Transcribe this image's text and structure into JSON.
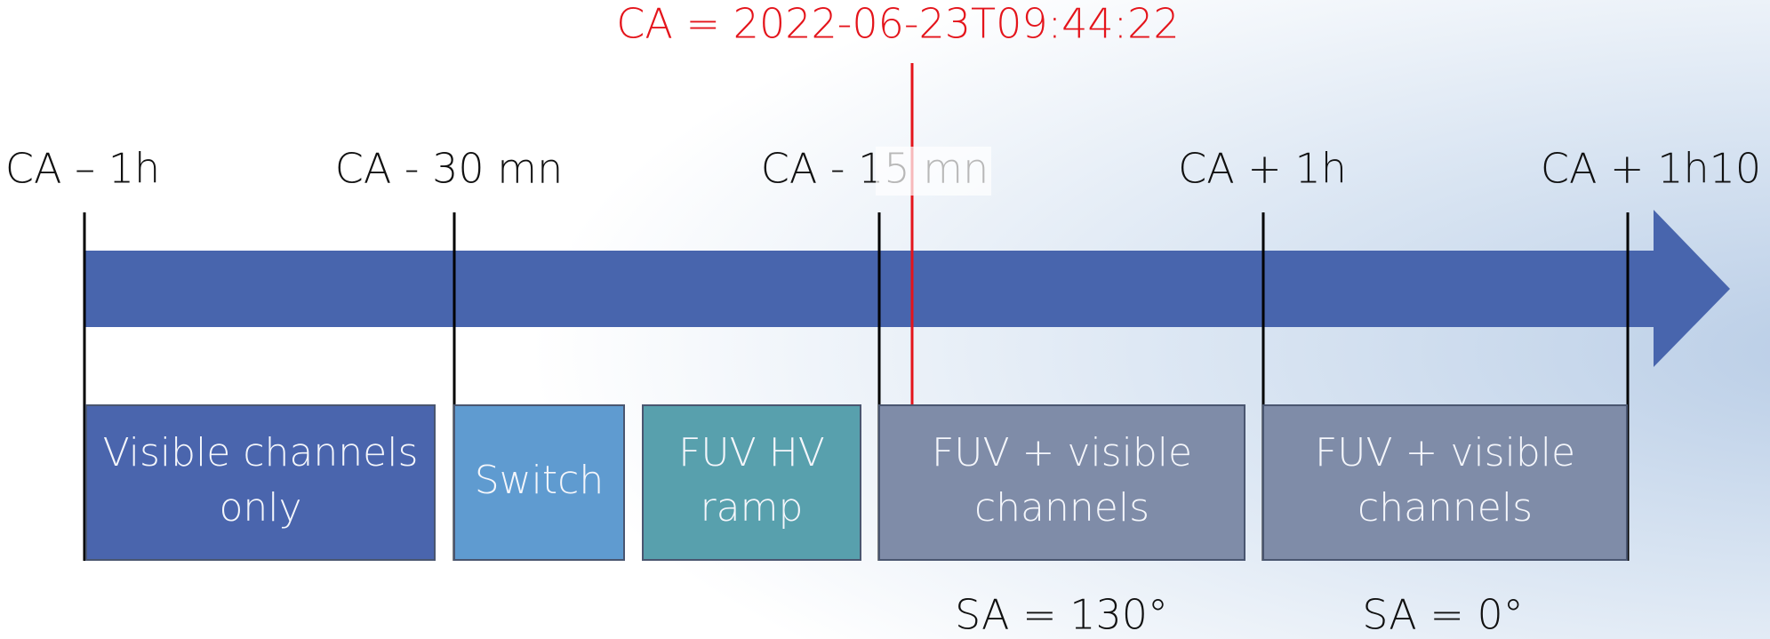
{
  "ca_label": "CA = 2022-06-23T09:44:22",
  "milestones": [
    "CA – 1h",
    "CA - 30 mn",
    "CA - 15 mn",
    "CA + 1h",
    "CA + 1h10"
  ],
  "boxes": [
    {
      "lines": [
        "Visible channels",
        "only"
      ]
    },
    {
      "lines": [
        "Switch"
      ]
    },
    {
      "lines": [
        "FUV HV",
        "ramp"
      ]
    },
    {
      "lines": [
        "FUV + visible",
        "channels"
      ]
    },
    {
      "lines": [
        "FUV + visible",
        "channels"
      ]
    }
  ],
  "solar_angles": [
    "SA = 130°",
    "SA = 0°"
  ]
}
